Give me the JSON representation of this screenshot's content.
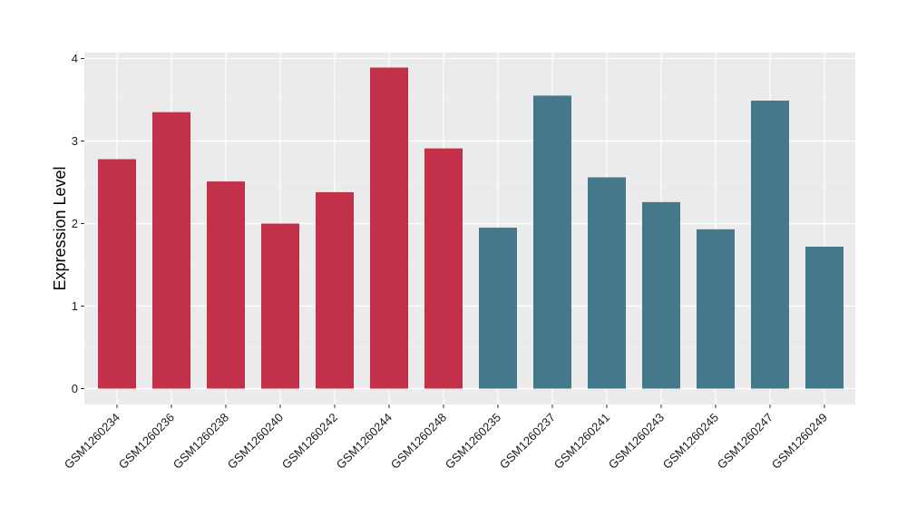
{
  "chart_data": {
    "type": "bar",
    "title": "",
    "xlabel": "",
    "ylabel": "Expression Level",
    "ylim": [
      0,
      4.0
    ],
    "y_ticks": [
      0,
      1,
      2,
      3,
      4
    ],
    "grid": true,
    "legend": "none",
    "colors": {
      "panel": "#ebebeb",
      "grid": "#ffffff"
    },
    "categories": [
      "GSM1260234",
      "GSM1260236",
      "GSM1260238",
      "GSM1260240",
      "GSM1260242",
      "GSM1260244",
      "GSM1260248",
      "GSM1260235",
      "GSM1260237",
      "GSM1260241",
      "GSM1260243",
      "GSM1260245",
      "GSM1260247",
      "GSM1260249"
    ],
    "values": [
      2.78,
      3.35,
      2.51,
      2.0,
      2.38,
      3.89,
      2.91,
      1.95,
      3.55,
      2.56,
      2.26,
      1.93,
      3.49,
      1.72
    ],
    "bar_colors": [
      "#c3304a",
      "#c3304a",
      "#c3304a",
      "#c3304a",
      "#c3304a",
      "#c3304a",
      "#c3304a",
      "#43798a",
      "#43798a",
      "#43798a",
      "#43798a",
      "#43798a",
      "#43798a",
      "#43798a"
    ]
  }
}
